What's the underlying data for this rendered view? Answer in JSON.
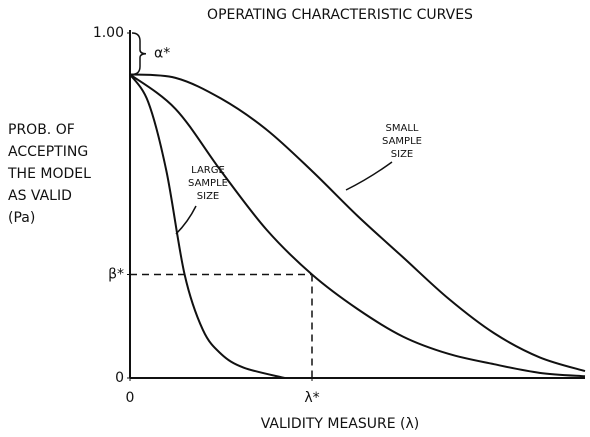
{
  "chart_data": {
    "type": "line",
    "title": "OPERATING CHARACTERISTIC CURVES",
    "ylabel": [
      "PROB. OF",
      "ACCEPTING",
      "THE MODEL",
      "AS VALID",
      "(Pa)"
    ],
    "xlabel": "VALIDITY MEASURE (λ)",
    "alpha_label": "α*",
    "large_label": [
      "LARGE",
      "SAMPLE",
      "SIZE"
    ],
    "small_label": [
      "SMALL",
      "SAMPLE",
      "SIZE"
    ],
    "xlim": [
      0,
      10
    ],
    "ylim": [
      0,
      1
    ],
    "xticks": [
      0,
      {
        "value": 4,
        "label": "λ*"
      }
    ],
    "yticks": [
      {
        "value": 1,
        "label": "1.00"
      },
      {
        "value": 0.3,
        "label": "β*"
      },
      0
    ],
    "series": [
      {
        "color": "#111111",
        "x": [
          0,
          0.4,
          0.8,
          1.2,
          1.6,
          2,
          2.5,
          3.4
        ],
        "values": [
          0.88,
          0.8,
          0.6,
          0.3,
          0.14,
          0.07,
          0.03,
          0
        ]
      },
      {
        "color": "#111111",
        "x": [
          0,
          1,
          2,
          3,
          4,
          5,
          6,
          7,
          8,
          9,
          10
        ],
        "values": [
          0.88,
          0.78,
          0.6,
          0.43,
          0.3,
          0.2,
          0.12,
          0.07,
          0.04,
          0.015,
          0.005
        ]
      },
      {
        "color": "#111111",
        "x": [
          0,
          1,
          2,
          3,
          4,
          5,
          6,
          7,
          8,
          9,
          10
        ],
        "values": [
          0.88,
          0.87,
          0.81,
          0.72,
          0.6,
          0.47,
          0.35,
          0.23,
          0.13,
          0.06,
          0.02
        ]
      }
    ]
  }
}
